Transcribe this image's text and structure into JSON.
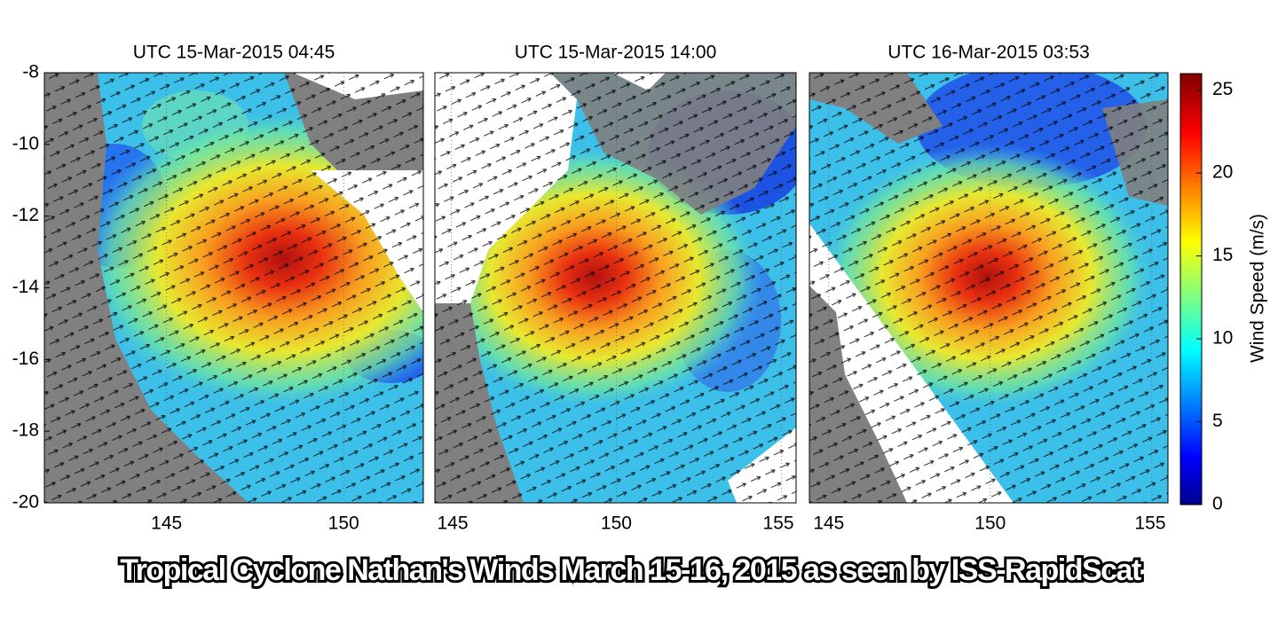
{
  "chart_data": [
    {
      "type": "map",
      "title": "UTC   15-Mar-2015 04:45",
      "xlim": [
        141.55,
        152.25
      ],
      "ylim": [
        -20,
        -8
      ],
      "xticks": [
        145,
        150
      ],
      "yticks": [
        -8,
        -10,
        -12,
        -14,
        -16,
        -18,
        -20
      ]
    },
    {
      "type": "map",
      "title": "UTC 15-Mar-2015 14:00",
      "xlim": [
        144.5,
        155.45
      ],
      "ylim": [
        -20,
        -8
      ],
      "xticks": [
        145,
        150,
        155
      ]
    },
    {
      "type": "map",
      "title": "UTC  16-Mar-2015 03:53",
      "xlim": [
        144.4,
        155.5
      ],
      "ylim": [
        -20,
        -8
      ],
      "xticks": [
        145,
        150,
        155
      ]
    }
  ],
  "colorbar": {
    "label": "Wind Speed (m/s)",
    "lim": [
      0,
      26
    ],
    "ticks": [
      0,
      5,
      10,
      15,
      20,
      25
    ]
  },
  "caption": "Tropical Cyclone Nathan's Winds March 15-16, 2015 as seen by ISS-RapidScat"
}
